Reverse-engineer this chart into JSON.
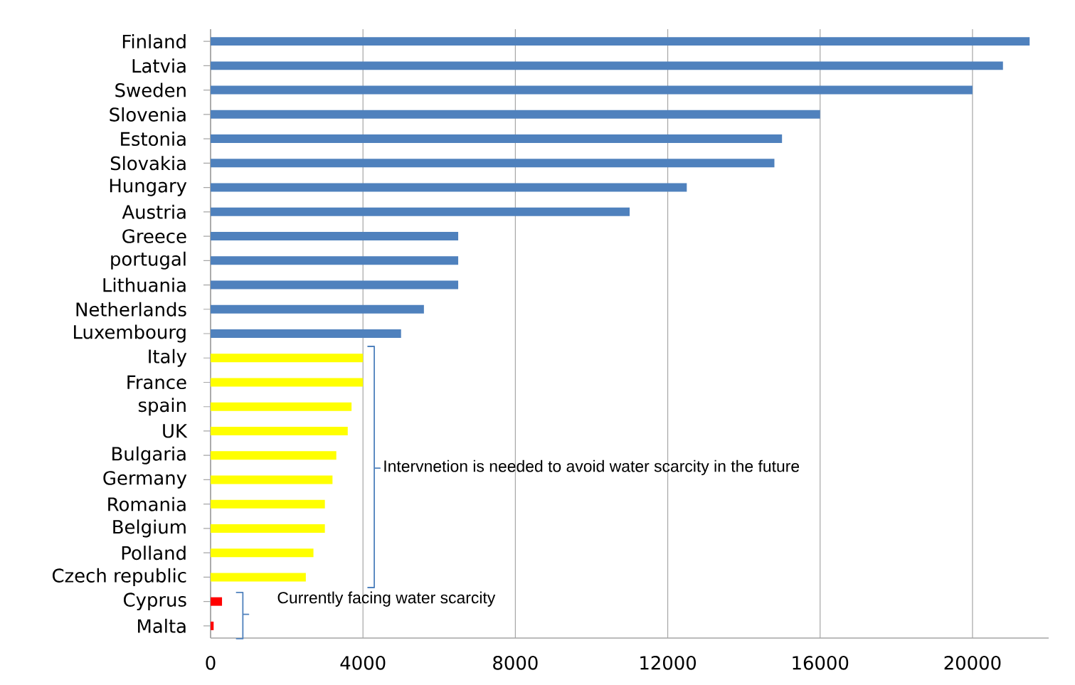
{
  "chart_data": {
    "type": "bar",
    "orientation": "horizontal",
    "categories": [
      "Finland",
      "Latvia",
      "Sweden",
      "Slovenia",
      "Estonia",
      "Slovakia",
      "Hungary",
      "Austria",
      "Greece",
      "portugal",
      "Lithuania",
      "Netherlands",
      "Luxembourg",
      "Italy",
      "France",
      "spain",
      "UK",
      "Bulgaria",
      "Germany",
      "Romania",
      "Belgium",
      "Polland",
      "Czech republic",
      "Cyprus",
      "Malta"
    ],
    "values": [
      21500,
      20800,
      20000,
      16000,
      15000,
      14800,
      12500,
      11000,
      6500,
      6500,
      6500,
      5600,
      5000,
      4000,
      4000,
      3700,
      3600,
      3300,
      3200,
      3000,
      3000,
      2700,
      2500,
      300,
      80
    ],
    "colors": [
      "#4f81bd",
      "#4f81bd",
      "#4f81bd",
      "#4f81bd",
      "#4f81bd",
      "#4f81bd",
      "#4f81bd",
      "#4f81bd",
      "#4f81bd",
      "#4f81bd",
      "#4f81bd",
      "#4f81bd",
      "#4f81bd",
      "#ffff00",
      "#ffff00",
      "#ffff00",
      "#ffff00",
      "#ffff00",
      "#ffff00",
      "#ffff00",
      "#ffff00",
      "#ffff00",
      "#ffff00",
      "#ff0000",
      "#ff0000"
    ],
    "xlim": [
      0,
      22000
    ],
    "xticks": [
      0,
      4000,
      8000,
      12000,
      16000,
      20000
    ],
    "grid": "x",
    "annotations": [
      "Intervnetion  is needed to avoid water scarcity in the future",
      "Currently facing water scarcity"
    ]
  }
}
